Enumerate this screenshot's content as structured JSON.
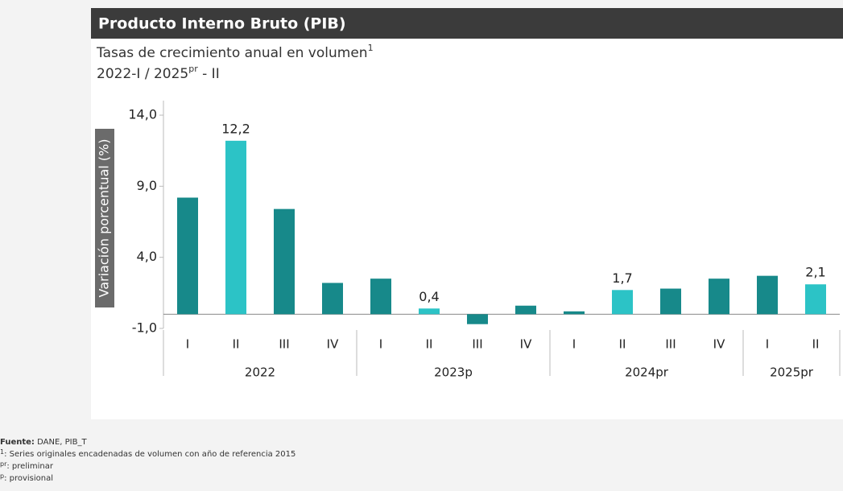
{
  "chart_data": {
    "type": "bar",
    "title": "Producto Interno Bruto (PIB)",
    "subtitle": {
      "text": "Tasas de crecimiento anual en volumen",
      "sup": "1"
    },
    "period": {
      "start": "2022-I / 2025",
      "sup": "pr",
      "end": " - II"
    },
    "y_label": "Variación porcentual (%)",
    "ylim": [
      -1,
      15
    ],
    "yticks": [
      {
        "value": 14,
        "label": "14,0"
      },
      {
        "value": 9,
        "label": "9,0"
      },
      {
        "value": 4,
        "label": "4,0"
      },
      {
        "value": -1,
        "label": "-1,0"
      }
    ],
    "groups": [
      {
        "name": "2022",
        "categories": [
          "I",
          "II",
          "III",
          "IV"
        ],
        "values": [
          8.2,
          12.2,
          7.4,
          2.2
        ],
        "value_labels": [
          null,
          "12,2",
          null,
          null
        ],
        "colors": [
          "#17898a",
          "#2cc3c6",
          "#17898a",
          "#17898a"
        ]
      },
      {
        "name": "2023p",
        "categories": [
          "I",
          "II",
          "III",
          "IV"
        ],
        "values": [
          2.5,
          0.4,
          -0.7,
          0.6
        ],
        "value_labels": [
          null,
          "0,4",
          null,
          null
        ],
        "colors": [
          "#17898a",
          "#2cc3c6",
          "#17898a",
          "#17898a"
        ]
      },
      {
        "name": "2024pr",
        "categories": [
          "I",
          "II",
          "III",
          "IV"
        ],
        "values": [
          0.2,
          1.7,
          1.8,
          2.5
        ],
        "value_labels": [
          null,
          "1,7",
          null,
          null
        ],
        "colors": [
          "#17898a",
          "#2cc3c6",
          "#17898a",
          "#17898a"
        ]
      },
      {
        "name": "2025pr",
        "categories": [
          "I",
          "II"
        ],
        "values": [
          2.7,
          2.1
        ],
        "value_labels": [
          null,
          "2,1"
        ],
        "colors": [
          "#17898a",
          "#2cc3c6"
        ]
      }
    ],
    "footer": [
      {
        "key": "Fuente:",
        "text": " DANE, PIB_T"
      },
      {
        "key": "1",
        "text": ": Series originales encadenadas de volumen con año de referencia 2015"
      },
      {
        "key": "pr",
        "text": ": preliminar"
      },
      {
        "key": "p",
        "text": ": provisional"
      }
    ]
  }
}
